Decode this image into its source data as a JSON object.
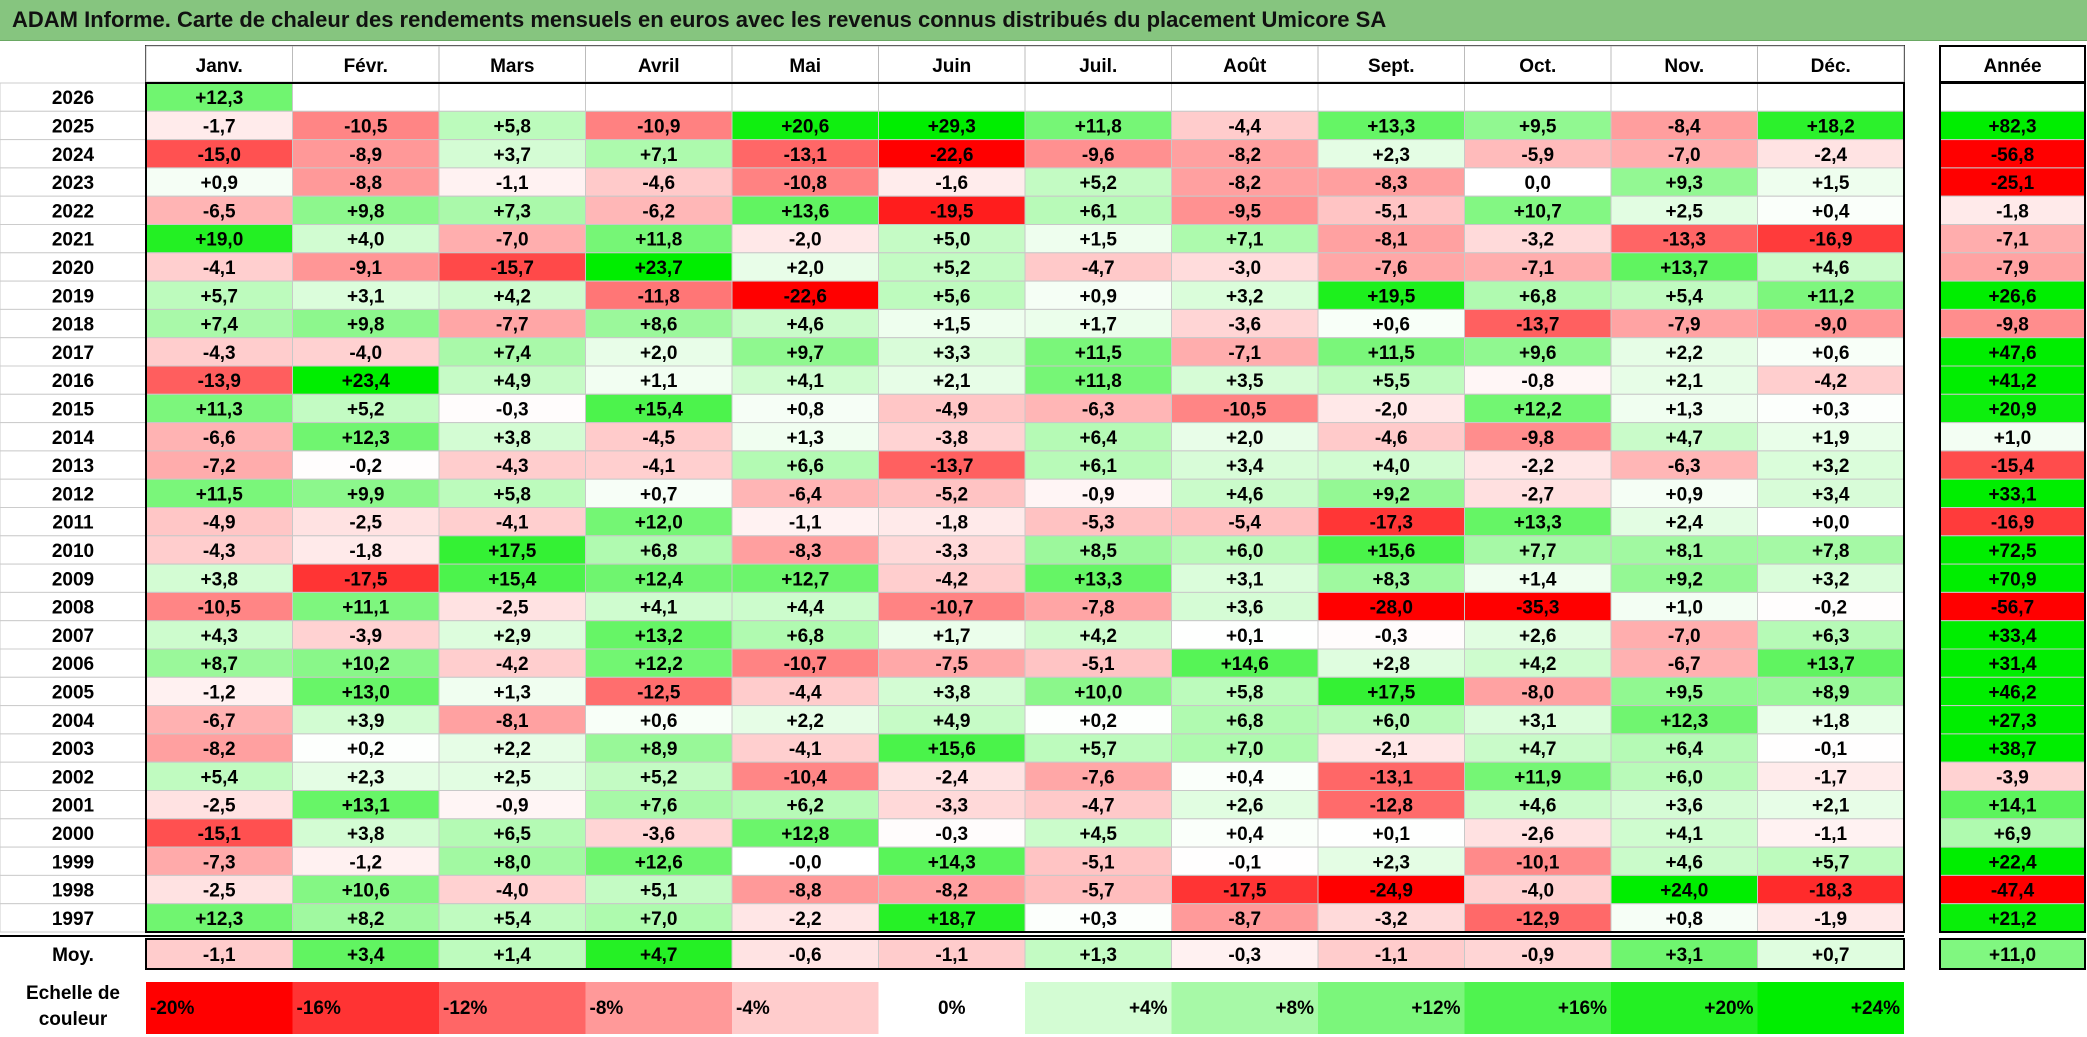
{
  "title": "ADAM Informe. Carte de chaleur des rendements mensuels en euros avec les revenus connus distribués du placement Umicore SA",
  "chart_data": {
    "type": "heatmap",
    "months": [
      "Janv.",
      "Févr.",
      "Mars",
      "Avril",
      "Mai",
      "Juin",
      "Juil.",
      "Août",
      "Sept.",
      "Oct.",
      "Nov.",
      "Déc."
    ],
    "year_header": "Année",
    "rows": [
      {
        "year": "2026",
        "values": [
          "+12,3",
          "",
          "",
          "",
          "",
          "",
          "",
          "",
          "",
          "",
          "",
          ""
        ],
        "annual": ""
      },
      {
        "year": "2025",
        "values": [
          "-1,7",
          "-10,5",
          "+5,8",
          "-10,9",
          "+20,6",
          "+29,3",
          "+11,8",
          "-4,4",
          "+13,3",
          "+9,5",
          "-8,4",
          "+18,2"
        ],
        "annual": "+82,3"
      },
      {
        "year": "2024",
        "values": [
          "-15,0",
          "-8,9",
          "+3,7",
          "+7,1",
          "-13,1",
          "-22,6",
          "-9,6",
          "-8,2",
          "+2,3",
          "-5,9",
          "-7,0",
          "-2,4"
        ],
        "annual": "-56,8"
      },
      {
        "year": "2023",
        "values": [
          "+0,9",
          "-8,8",
          "-1,1",
          "-4,6",
          "-10,8",
          "-1,6",
          "+5,2",
          "-8,2",
          "-8,3",
          "0,0",
          "+9,3",
          "+1,5"
        ],
        "annual": "-25,1"
      },
      {
        "year": "2022",
        "values": [
          "-6,5",
          "+9,8",
          "+7,3",
          "-6,2",
          "+13,6",
          "-19,5",
          "+6,1",
          "-9,5",
          "-5,1",
          "+10,7",
          "+2,5",
          "+0,4"
        ],
        "annual": "-1,8"
      },
      {
        "year": "2021",
        "values": [
          "+19,0",
          "+4,0",
          "-7,0",
          "+11,8",
          "-2,0",
          "+5,0",
          "+1,5",
          "+7,1",
          "-8,1",
          "-3,2",
          "-13,3",
          "-16,9"
        ],
        "annual": "-7,1"
      },
      {
        "year": "2020",
        "values": [
          "-4,1",
          "-9,1",
          "-15,7",
          "+23,7",
          "+2,0",
          "+5,2",
          "-4,7",
          "-3,0",
          "-7,6",
          "-7,1",
          "+13,7",
          "+4,6"
        ],
        "annual": "-7,9"
      },
      {
        "year": "2019",
        "values": [
          "+5,7",
          "+3,1",
          "+4,2",
          "-11,8",
          "-22,6",
          "+5,6",
          "+0,9",
          "+3,2",
          "+19,5",
          "+6,8",
          "+5,4",
          "+11,2"
        ],
        "annual": "+26,6"
      },
      {
        "year": "2018",
        "values": [
          "+7,4",
          "+9,8",
          "-7,7",
          "+8,6",
          "+4,6",
          "+1,5",
          "+1,7",
          "-3,6",
          "+0,6",
          "-13,7",
          "-7,9",
          "-9,0"
        ],
        "annual": "-9,8"
      },
      {
        "year": "2017",
        "values": [
          "-4,3",
          "-4,0",
          "+7,4",
          "+2,0",
          "+9,7",
          "+3,3",
          "+11,5",
          "-7,1",
          "+11,5",
          "+9,6",
          "+2,2",
          "+0,6"
        ],
        "annual": "+47,6"
      },
      {
        "year": "2016",
        "values": [
          "-13,9",
          "+23,4",
          "+4,9",
          "+1,1",
          "+4,1",
          "+2,1",
          "+11,8",
          "+3,5",
          "+5,5",
          "-0,8",
          "+2,1",
          "-4,2"
        ],
        "annual": "+41,2"
      },
      {
        "year": "2015",
        "values": [
          "+11,3",
          "+5,2",
          "-0,3",
          "+15,4",
          "+0,8",
          "-4,9",
          "-6,3",
          "-10,5",
          "-2,0",
          "+12,2",
          "+1,3",
          "+0,3"
        ],
        "annual": "+20,9"
      },
      {
        "year": "2014",
        "values": [
          "-6,6",
          "+12,3",
          "+3,8",
          "-4,5",
          "+1,3",
          "-3,8",
          "+6,4",
          "+2,0",
          "-4,6",
          "-9,8",
          "+4,7",
          "+1,9"
        ],
        "annual": "+1,0"
      },
      {
        "year": "2013",
        "values": [
          "-7,2",
          "-0,2",
          "-4,3",
          "-4,1",
          "+6,6",
          "-13,7",
          "+6,1",
          "+3,4",
          "+4,0",
          "-2,2",
          "-6,3",
          "+3,2"
        ],
        "annual": "-15,4"
      },
      {
        "year": "2012",
        "values": [
          "+11,5",
          "+9,9",
          "+5,8",
          "+0,7",
          "-6,4",
          "-5,2",
          "-0,9",
          "+4,6",
          "+9,2",
          "-2,7",
          "+0,9",
          "+3,4"
        ],
        "annual": "+33,1"
      },
      {
        "year": "2011",
        "values": [
          "-4,9",
          "-2,5",
          "-4,1",
          "+12,0",
          "-1,1",
          "-1,8",
          "-5,3",
          "-5,4",
          "-17,3",
          "+13,3",
          "+2,4",
          "+0,0"
        ],
        "annual": "-16,9"
      },
      {
        "year": "2010",
        "values": [
          "-4,3",
          "-1,8",
          "+17,5",
          "+6,8",
          "-8,3",
          "-3,3",
          "+8,5",
          "+6,0",
          "+15,6",
          "+7,7",
          "+8,1",
          "+7,8"
        ],
        "annual": "+72,5"
      },
      {
        "year": "2009",
        "values": [
          "+3,8",
          "-17,5",
          "+15,4",
          "+12,4",
          "+12,7",
          "-4,2",
          "+13,3",
          "+3,1",
          "+8,3",
          "+1,4",
          "+9,2",
          "+3,2"
        ],
        "annual": "+70,9"
      },
      {
        "year": "2008",
        "values": [
          "-10,5",
          "+11,1",
          "-2,5",
          "+4,1",
          "+4,4",
          "-10,7",
          "-7,8",
          "+3,6",
          "-28,0",
          "-35,3",
          "+1,0",
          "-0,2"
        ],
        "annual": "-56,7"
      },
      {
        "year": "2007",
        "values": [
          "+4,3",
          "-3,9",
          "+2,9",
          "+13,2",
          "+6,8",
          "+1,7",
          "+4,2",
          "+0,1",
          "-0,3",
          "+2,6",
          "-7,0",
          "+6,3"
        ],
        "annual": "+33,4"
      },
      {
        "year": "2006",
        "values": [
          "+8,7",
          "+10,2",
          "-4,2",
          "+12,2",
          "-10,7",
          "-7,5",
          "-5,1",
          "+14,6",
          "+2,8",
          "+4,2",
          "-6,7",
          "+13,7"
        ],
        "annual": "+31,4"
      },
      {
        "year": "2005",
        "values": [
          "-1,2",
          "+13,0",
          "+1,3",
          "-12,5",
          "-4,4",
          "+3,8",
          "+10,0",
          "+5,8",
          "+17,5",
          "-8,0",
          "+9,5",
          "+8,9"
        ],
        "annual": "+46,2"
      },
      {
        "year": "2004",
        "values": [
          "-6,7",
          "+3,9",
          "-8,1",
          "+0,6",
          "+2,2",
          "+4,9",
          "+0,2",
          "+6,8",
          "+6,0",
          "+3,1",
          "+12,3",
          "+1,8"
        ],
        "annual": "+27,3"
      },
      {
        "year": "2003",
        "values": [
          "-8,2",
          "+0,2",
          "+2,2",
          "+8,9",
          "-4,1",
          "+15,6",
          "+5,7",
          "+7,0",
          "-2,1",
          "+4,7",
          "+6,4",
          "-0,1"
        ],
        "annual": "+38,7"
      },
      {
        "year": "2002",
        "values": [
          "+5,4",
          "+2,3",
          "+2,5",
          "+5,2",
          "-10,4",
          "-2,4",
          "-7,6",
          "+0,4",
          "-13,1",
          "+11,9",
          "+6,0",
          "-1,7"
        ],
        "annual": "-3,9"
      },
      {
        "year": "2001",
        "values": [
          "-2,5",
          "+13,1",
          "-0,9",
          "+7,6",
          "+6,2",
          "-3,3",
          "-4,7",
          "+2,6",
          "-12,8",
          "+4,6",
          "+3,6",
          "+2,1"
        ],
        "annual": "+14,1"
      },
      {
        "year": "2000",
        "values": [
          "-15,1",
          "+3,8",
          "+6,5",
          "-3,6",
          "+12,8",
          "-0,3",
          "+4,5",
          "+0,4",
          "+0,1",
          "-2,6",
          "+4,1",
          "-1,1"
        ],
        "annual": "+6,9"
      },
      {
        "year": "1999",
        "values": [
          "-7,3",
          "-1,2",
          "+8,0",
          "+12,6",
          "-0,0",
          "+14,3",
          "-5,1",
          "-0,1",
          "+2,3",
          "-10,1",
          "+4,6",
          "+5,7"
        ],
        "annual": "+22,4"
      },
      {
        "year": "1998",
        "values": [
          "-2,5",
          "+10,6",
          "-4,0",
          "+5,1",
          "-8,8",
          "-8,2",
          "-5,7",
          "-17,5",
          "-24,9",
          "-4,0",
          "+24,0",
          "-18,3"
        ],
        "annual": "-47,4"
      },
      {
        "year": "1997",
        "values": [
          "+12,3",
          "+8,2",
          "+5,4",
          "+7,0",
          "-2,2",
          "+18,7",
          "+0,3",
          "-8,7",
          "-3,2",
          "-12,9",
          "+0,8",
          "-1,9"
        ],
        "annual": "+21,2"
      }
    ],
    "average": {
      "label": "Moy.",
      "values": [
        "-1,1",
        "+3,4",
        "+1,4",
        "+4,7",
        "-0,6",
        "-1,1",
        "+1,3",
        "-0,3",
        "-1,1",
        "-0,9",
        "+3,1",
        "+0,7"
      ],
      "annual": "+11,0"
    },
    "color_scale": {
      "title_lines": [
        "Echelle de",
        "couleur"
      ],
      "labels": [
        "-20%",
        "-16%",
        "-12%",
        "-8%",
        "-4%",
        "0%",
        "+4%",
        "+8%",
        "+12%",
        "+16%",
        "+20%",
        "+24%"
      ],
      "values": [
        -20,
        -16,
        -12,
        -8,
        -4,
        0,
        4,
        8,
        12,
        16,
        20,
        24
      ]
    },
    "colors": {
      "negative": "#ff0000",
      "positive": "#00ee00",
      "neutral": "#ffffff",
      "title_bar": "#86c57f"
    }
  }
}
